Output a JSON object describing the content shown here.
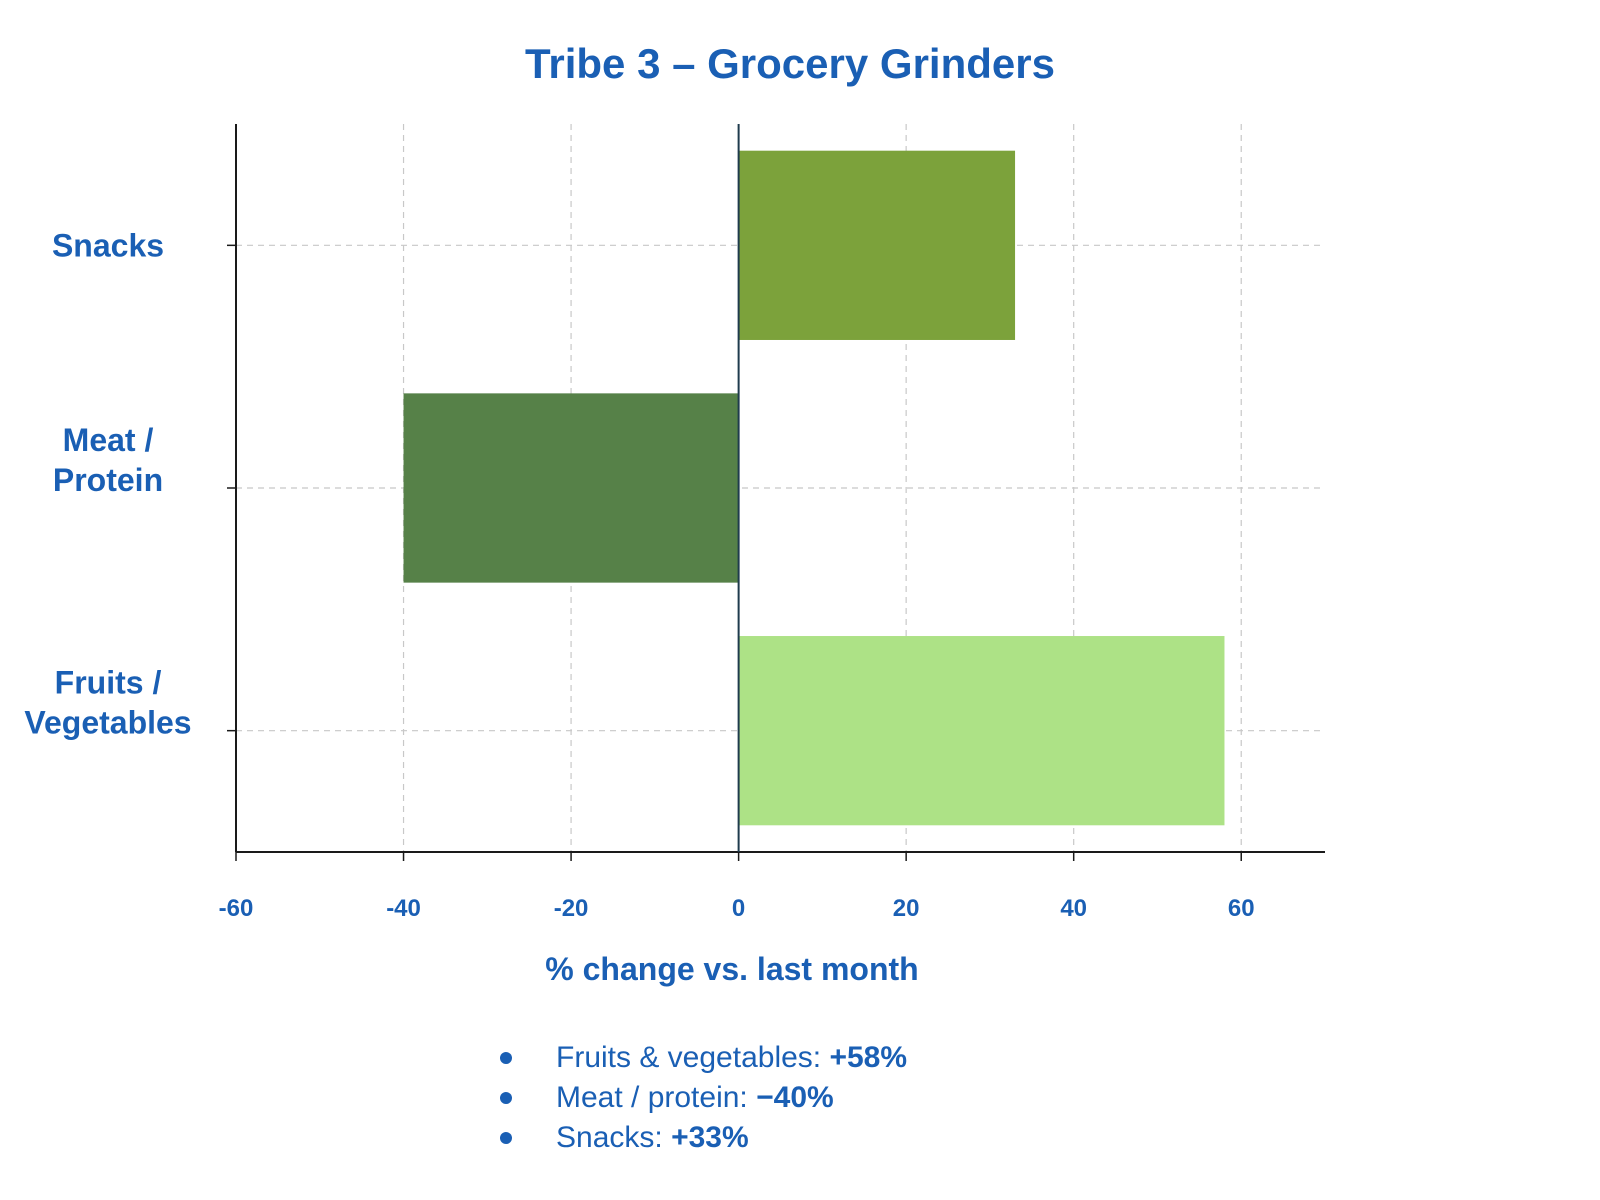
{
  "chart_data": {
    "type": "bar",
    "orientation": "horizontal",
    "title": "Tribe 3 – Grocery Grinders",
    "xlabel": "% change vs. last month",
    "ylabel": "",
    "categories": [
      "Snacks",
      "Meat / Protein",
      "Fruits / Vegetables"
    ],
    "category_lines": [
      [
        "Snacks"
      ],
      [
        "Meat /",
        "Protein"
      ],
      [
        "Fruits /",
        "Vegetables"
      ]
    ],
    "values": [
      33,
      -40,
      58
    ],
    "colors": [
      "#7ca23b",
      "#568148",
      "#ade286"
    ],
    "xlim": [
      -60,
      70
    ],
    "xticks": [
      -60,
      -40,
      -20,
      0,
      20,
      40,
      60
    ],
    "xtick_labels": [
      "-60",
      "-40",
      "-20",
      "0",
      "20",
      "40",
      "60"
    ],
    "grid": true,
    "legend": "none"
  },
  "summary": {
    "items": [
      {
        "label": "Fruits & vegetables:",
        "value": "+58%"
      },
      {
        "label": "Meat / protein:",
        "value": "−40%"
      },
      {
        "label": "Snacks:",
        "value": "+33%"
      }
    ]
  },
  "colors": {
    "text": "#1a5fb4",
    "axis": "#1a1a1a",
    "zero_line": "#1f3b4d",
    "grid": "#c8c8c8"
  }
}
